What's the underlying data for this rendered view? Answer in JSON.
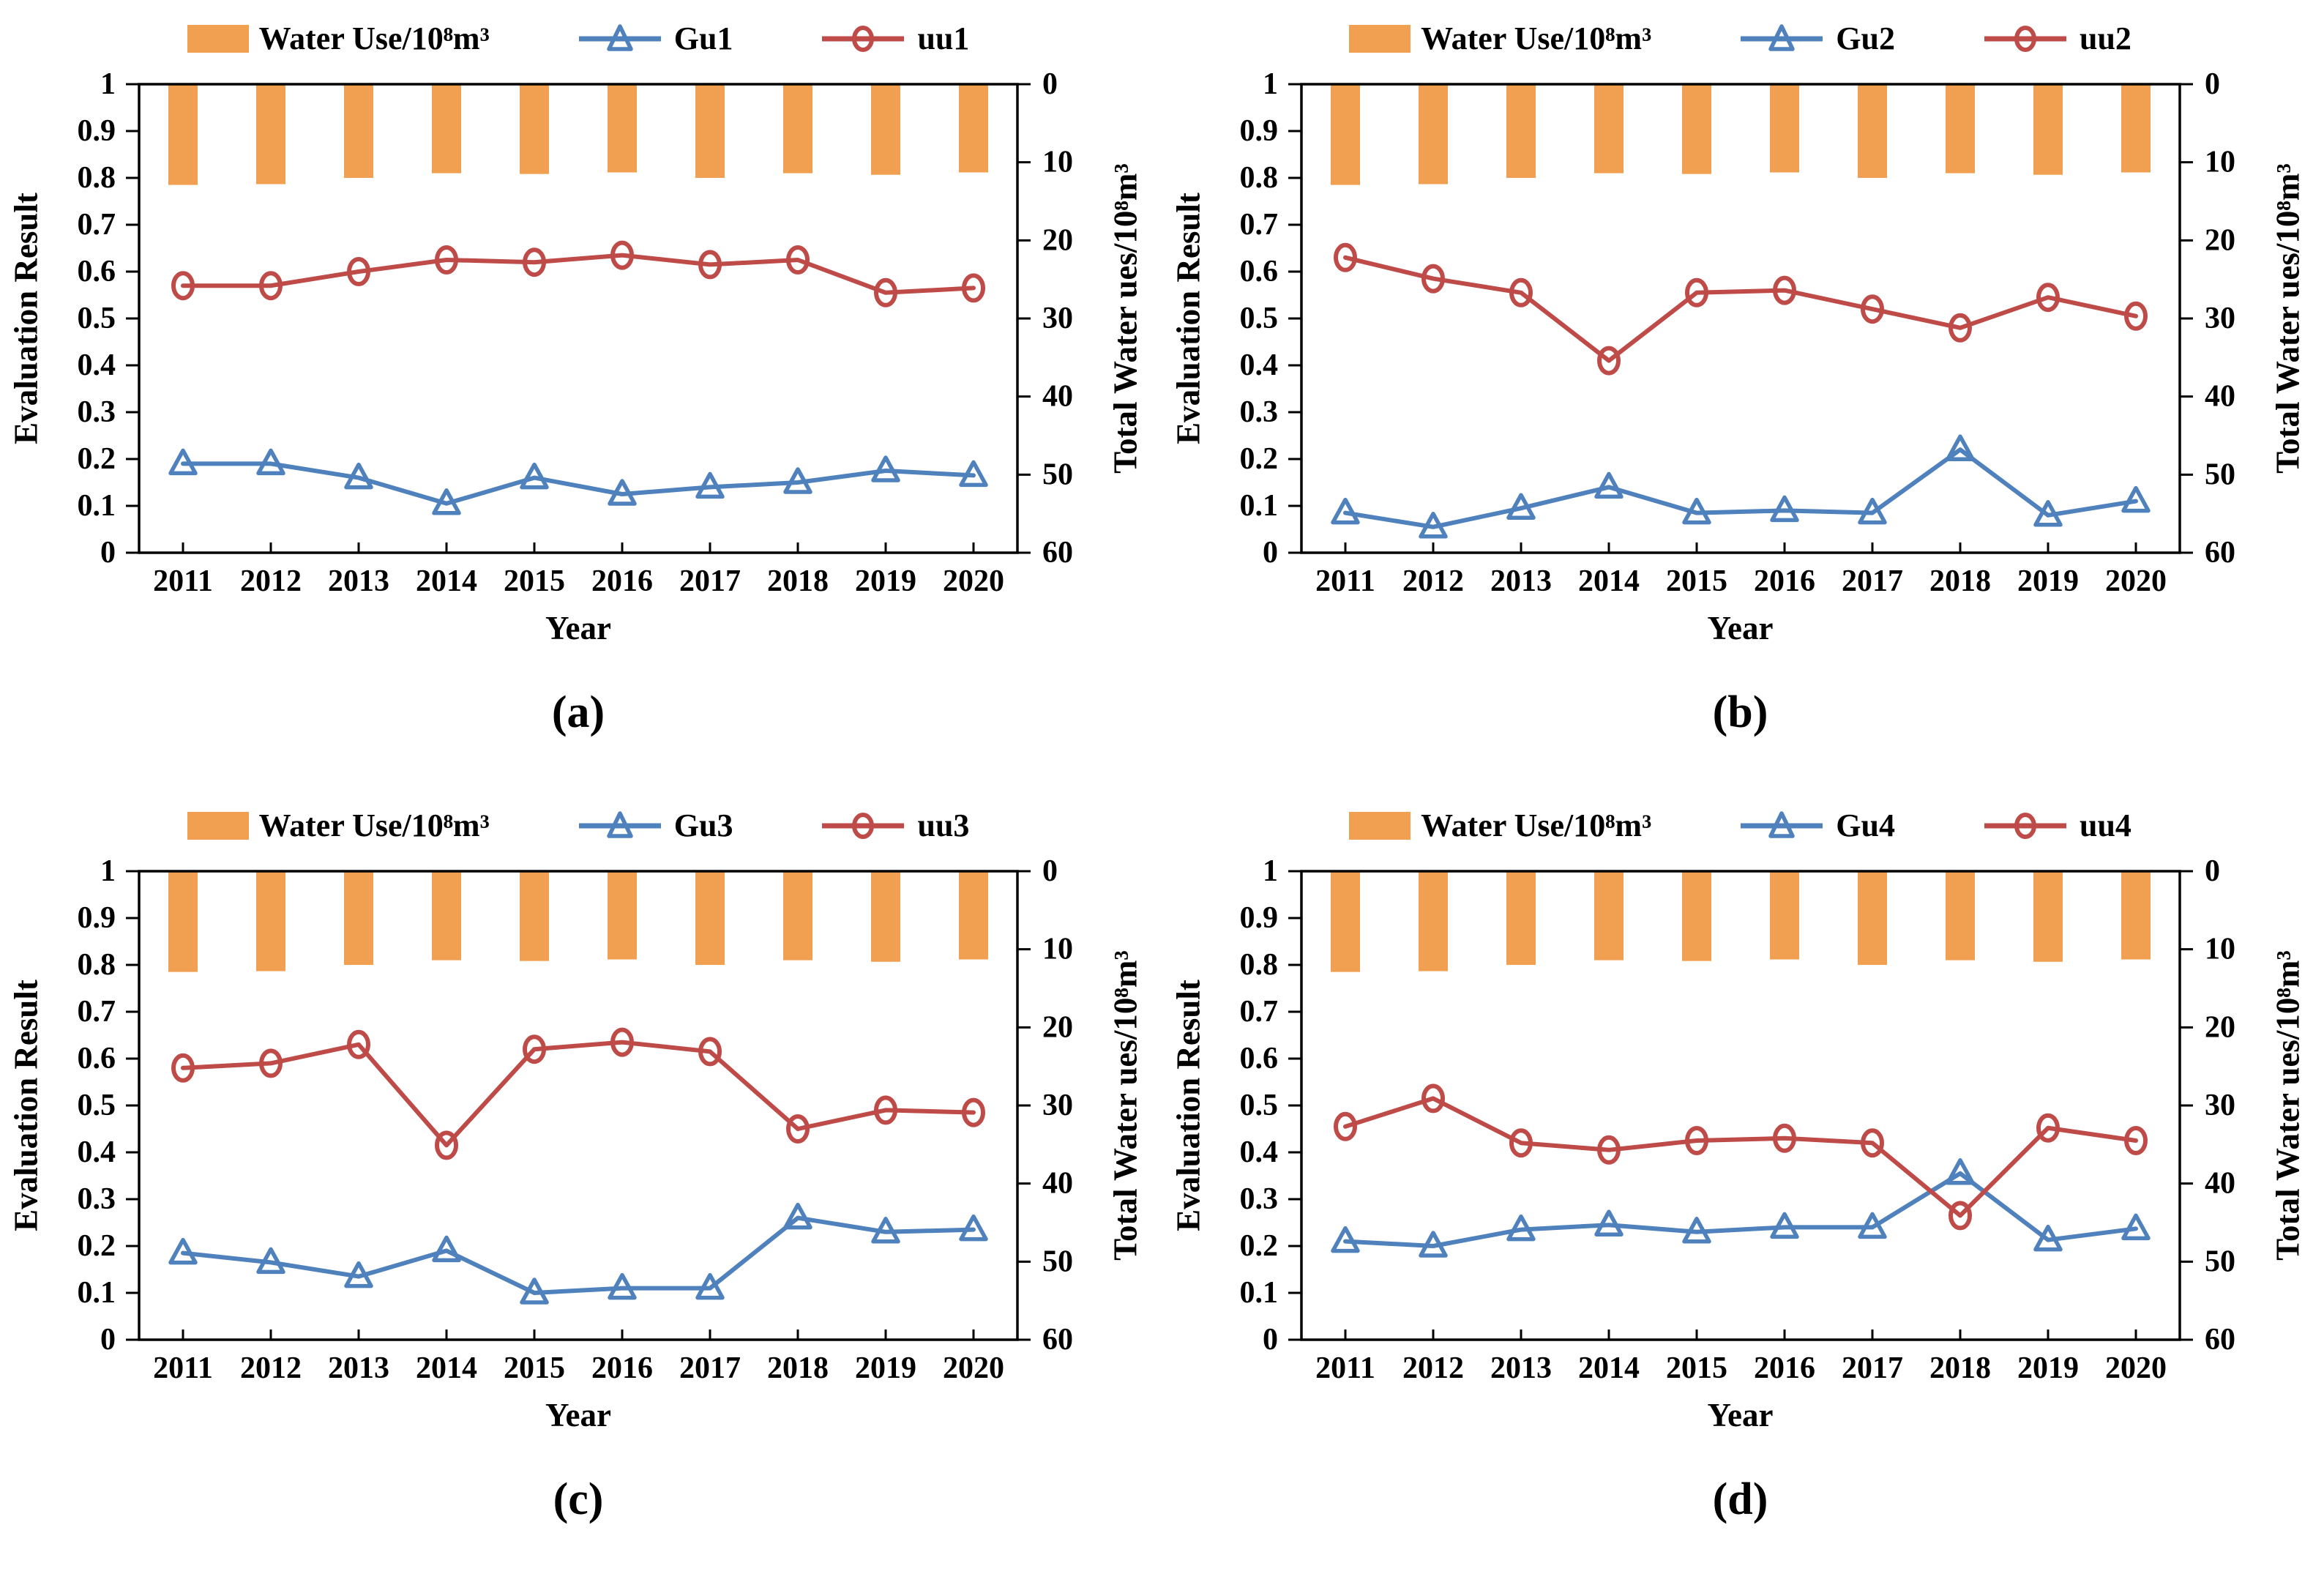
{
  "page": {
    "background": "#ffffff"
  },
  "colors": {
    "bar": "#F0A050",
    "gu": "#4F81BD",
    "uu": "#BE4B48",
    "axis": "#000000",
    "text": "#000000"
  },
  "axes": {
    "left_label": "Evaluation Result",
    "right_label": "Total Water ues/10⁸m³",
    "x_label": "Year",
    "left_range": [
      0,
      1
    ],
    "right_range": [
      0,
      60
    ],
    "right_reversed": true,
    "grid": false,
    "left_tick_labels": [
      "0",
      "0.1",
      "0.2",
      "0.3",
      "0.4",
      "0.5",
      "0.6",
      "0.7",
      "0.8",
      "0.9",
      "1"
    ],
    "right_tick_labels": [
      "0",
      "10",
      "20",
      "30",
      "40",
      "50",
      "60"
    ]
  },
  "chart_data": [
    {
      "type": "bar+line",
      "caption": "(a)",
      "legend": {
        "bar_label": "Water Use/10⁸m³",
        "gu_label": "Gu1",
        "uu_label": "uu1"
      },
      "legend_position": "top",
      "categories": [
        "2011",
        "2012",
        "2013",
        "2014",
        "2015",
        "2016",
        "2017",
        "2018",
        "2019",
        "2020"
      ],
      "bar_series": {
        "name": "Water Use/10⁸m³",
        "axis": "right",
        "color": "#F0A050",
        "values": [
          12.9,
          12.8,
          12.0,
          11.4,
          11.5,
          11.3,
          12.0,
          11.4,
          11.6,
          11.3
        ]
      },
      "line_series": [
        {
          "name": "Gu1",
          "marker": "triangle",
          "axis": "left",
          "color": "#4F81BD",
          "values": [
            0.19,
            0.19,
            0.16,
            0.105,
            0.16,
            0.125,
            0.14,
            0.15,
            0.175,
            0.165
          ]
        },
        {
          "name": "uu1",
          "marker": "circle",
          "axis": "left",
          "color": "#BE4B48",
          "values": [
            0.57,
            0.57,
            0.6,
            0.625,
            0.62,
            0.635,
            0.615,
            0.625,
            0.555,
            0.565
          ]
        }
      ]
    },
    {
      "type": "bar+line",
      "caption": "(b)",
      "legend": {
        "bar_label": "Water Use/10⁸m³",
        "gu_label": "Gu2",
        "uu_label": "uu2"
      },
      "legend_position": "top",
      "categories": [
        "2011",
        "2012",
        "2013",
        "2014",
        "2015",
        "2016",
        "2017",
        "2018",
        "2019",
        "2020"
      ],
      "bar_series": {
        "name": "Water Use/10⁸m³",
        "axis": "right",
        "color": "#F0A050",
        "values": [
          12.9,
          12.8,
          12.0,
          11.4,
          11.5,
          11.3,
          12.0,
          11.4,
          11.6,
          11.3
        ]
      },
      "line_series": [
        {
          "name": "Gu2",
          "marker": "triangle",
          "axis": "left",
          "color": "#4F81BD",
          "values": [
            0.085,
            0.055,
            0.095,
            0.14,
            0.085,
            0.09,
            0.085,
            0.22,
            0.08,
            0.11
          ]
        },
        {
          "name": "uu2",
          "marker": "circle",
          "axis": "left",
          "color": "#BE4B48",
          "values": [
            0.63,
            0.585,
            0.555,
            0.41,
            0.555,
            0.56,
            0.52,
            0.48,
            0.545,
            0.505
          ]
        }
      ]
    },
    {
      "type": "bar+line",
      "caption": "(c)",
      "legend": {
        "bar_label": "Water Use/10⁸m³",
        "gu_label": "Gu3",
        "uu_label": "uu3"
      },
      "legend_position": "top",
      "categories": [
        "2011",
        "2012",
        "2013",
        "2014",
        "2015",
        "2016",
        "2017",
        "2018",
        "2019",
        "2020"
      ],
      "bar_series": {
        "name": "Water Use/10⁸m³",
        "axis": "right",
        "color": "#F0A050",
        "values": [
          12.9,
          12.8,
          12.0,
          11.4,
          11.5,
          11.3,
          12.0,
          11.4,
          11.6,
          11.3
        ]
      },
      "line_series": [
        {
          "name": "Gu3",
          "marker": "triangle",
          "axis": "left",
          "color": "#4F81BD",
          "values": [
            0.185,
            0.165,
            0.135,
            0.19,
            0.1,
            0.11,
            0.11,
            0.26,
            0.23,
            0.235
          ]
        },
        {
          "name": "uu3",
          "marker": "circle",
          "axis": "left",
          "color": "#BE4B48",
          "values": [
            0.58,
            0.59,
            0.63,
            0.415,
            0.62,
            0.635,
            0.615,
            0.45,
            0.49,
            0.485
          ]
        }
      ]
    },
    {
      "type": "bar+line",
      "caption": "(d)",
      "legend": {
        "bar_label": "Water Use/10⁸m³",
        "gu_label": "Gu4",
        "uu_label": "uu4"
      },
      "legend_position": "top",
      "categories": [
        "2011",
        "2012",
        "2013",
        "2014",
        "2015",
        "2016",
        "2017",
        "2018",
        "2019",
        "2020"
      ],
      "bar_series": {
        "name": "Water Use/10⁸m³",
        "axis": "right",
        "color": "#F0A050",
        "values": [
          12.9,
          12.8,
          12.0,
          11.4,
          11.5,
          11.3,
          12.0,
          11.4,
          11.6,
          11.3
        ]
      },
      "line_series": [
        {
          "name": "Gu4",
          "marker": "triangle",
          "axis": "left",
          "color": "#4F81BD",
          "values": [
            0.21,
            0.2,
            0.235,
            0.245,
            0.23,
            0.24,
            0.24,
            0.355,
            0.213,
            0.237
          ]
        },
        {
          "name": "uu4",
          "marker": "circle",
          "axis": "left",
          "color": "#BE4B48",
          "values": [
            0.455,
            0.515,
            0.42,
            0.405,
            0.425,
            0.43,
            0.42,
            0.265,
            0.452,
            0.425
          ]
        }
      ]
    }
  ]
}
